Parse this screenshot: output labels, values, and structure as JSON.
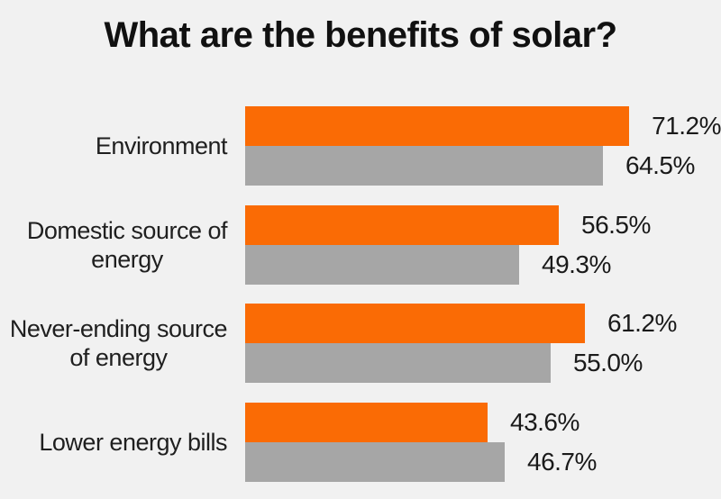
{
  "title": "What are the benefits of solar?",
  "colors": {
    "bar-primary": "#FA6B05",
    "bar-secondary": "#A6A6A6",
    "background": "#F1F1F1",
    "text": "#1A1A1A"
  },
  "chart_data": {
    "type": "bar",
    "orientation": "horizontal",
    "title": "What are the benefits of solar?",
    "categories": [
      "Environment",
      "Domestic source of\nenergy",
      "Never-ending source\nof energy",
      "Lower energy bills"
    ],
    "series": [
      {
        "name": "series-orange",
        "color": "#FA6B05",
        "values": [
          71.2,
          56.5,
          61.2,
          43.6
        ],
        "labels": [
          "71.2%",
          "56.5%",
          "61.2%",
          "43.6%"
        ]
      },
      {
        "name": "series-gray",
        "color": "#A6A6A6",
        "values": [
          64.5,
          49.3,
          55.0,
          46.7
        ],
        "labels": [
          "64.5%",
          "49.3%",
          "55.0%",
          "46.7%"
        ]
      }
    ],
    "xlim": [
      0,
      85
    ],
    "grid": false,
    "legend": "none",
    "axes": "hidden",
    "value_label_format": "0.0%"
  }
}
